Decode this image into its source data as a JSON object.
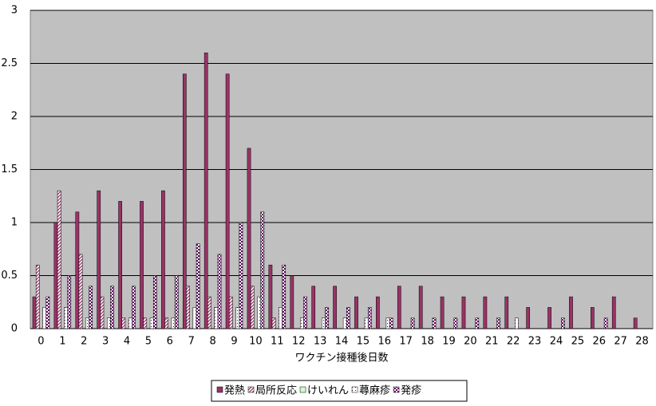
{
  "chart_data": {
    "type": "bar",
    "x_label": "ワクチン接種後日数",
    "categories": [
      "0",
      "1",
      "2",
      "3",
      "4",
      "5",
      "6",
      "7",
      "8",
      "9",
      "10",
      "11",
      "12",
      "13",
      "14",
      "15",
      "16",
      "17",
      "18",
      "19",
      "20",
      "21",
      "22",
      "23",
      "24",
      "25",
      "26",
      "27",
      "28"
    ],
    "series": [
      {
        "name": "発熱",
        "color": "#993366",
        "values": [
          0.3,
          1.0,
          1.1,
          1.3,
          1.2,
          1.2,
          1.3,
          2.4,
          2.6,
          2.4,
          1.7,
          0.6,
          0.5,
          0.4,
          0.4,
          0.3,
          0.3,
          0.4,
          0.4,
          0.3,
          0.3,
          0.3,
          0.3,
          0.2,
          0.2,
          0.3,
          0.2,
          0.3,
          0.1
        ]
      },
      {
        "name": "局所反応",
        "color": "#993366",
        "values": [
          0.6,
          1.3,
          0.7,
          0.3,
          0.1,
          0.1,
          0.1,
          0.4,
          0.3,
          0.3,
          0.4,
          0.1,
          0,
          0,
          0,
          0,
          0,
          0,
          0,
          0,
          0,
          0,
          0,
          0,
          0,
          0,
          0,
          0,
          0
        ]
      },
      {
        "name": "けいれん",
        "color": "#ccffcc",
        "values": [
          0,
          0,
          0,
          0,
          0,
          0,
          0,
          0,
          0,
          0,
          0,
          0,
          0,
          0,
          0,
          0,
          0,
          0,
          0,
          0,
          0,
          0,
          0,
          0,
          0,
          0,
          0,
          0,
          0
        ]
      },
      {
        "name": "蕁麻疹",
        "color": "#660066",
        "values": [
          0.2,
          0.2,
          0.1,
          0.1,
          0.1,
          0.1,
          0.1,
          0.2,
          0.2,
          0.2,
          0.3,
          0.2,
          0.1,
          0.1,
          0.1,
          0.1,
          0.1,
          0,
          0,
          0,
          0,
          0,
          0.1,
          0,
          0,
          0,
          0,
          0,
          0
        ]
      },
      {
        "name": "発疹",
        "color": "#660066",
        "values": [
          0.3,
          0.5,
          0.4,
          0.4,
          0.4,
          0.5,
          0.5,
          0.8,
          0.7,
          1.0,
          1.1,
          0.6,
          0.3,
          0.2,
          0.2,
          0.2,
          0.1,
          0.1,
          0.1,
          0.1,
          0.1,
          0.1,
          0,
          0,
          0.1,
          0,
          0.1,
          0,
          0
        ]
      }
    ],
    "ylim": [
      0,
      3
    ],
    "yticks": [
      0,
      0.5,
      1,
      1.5,
      2,
      2.5,
      3
    ],
    "grid": true,
    "plot_background": "#c0c0c0",
    "legend": "bottom"
  }
}
